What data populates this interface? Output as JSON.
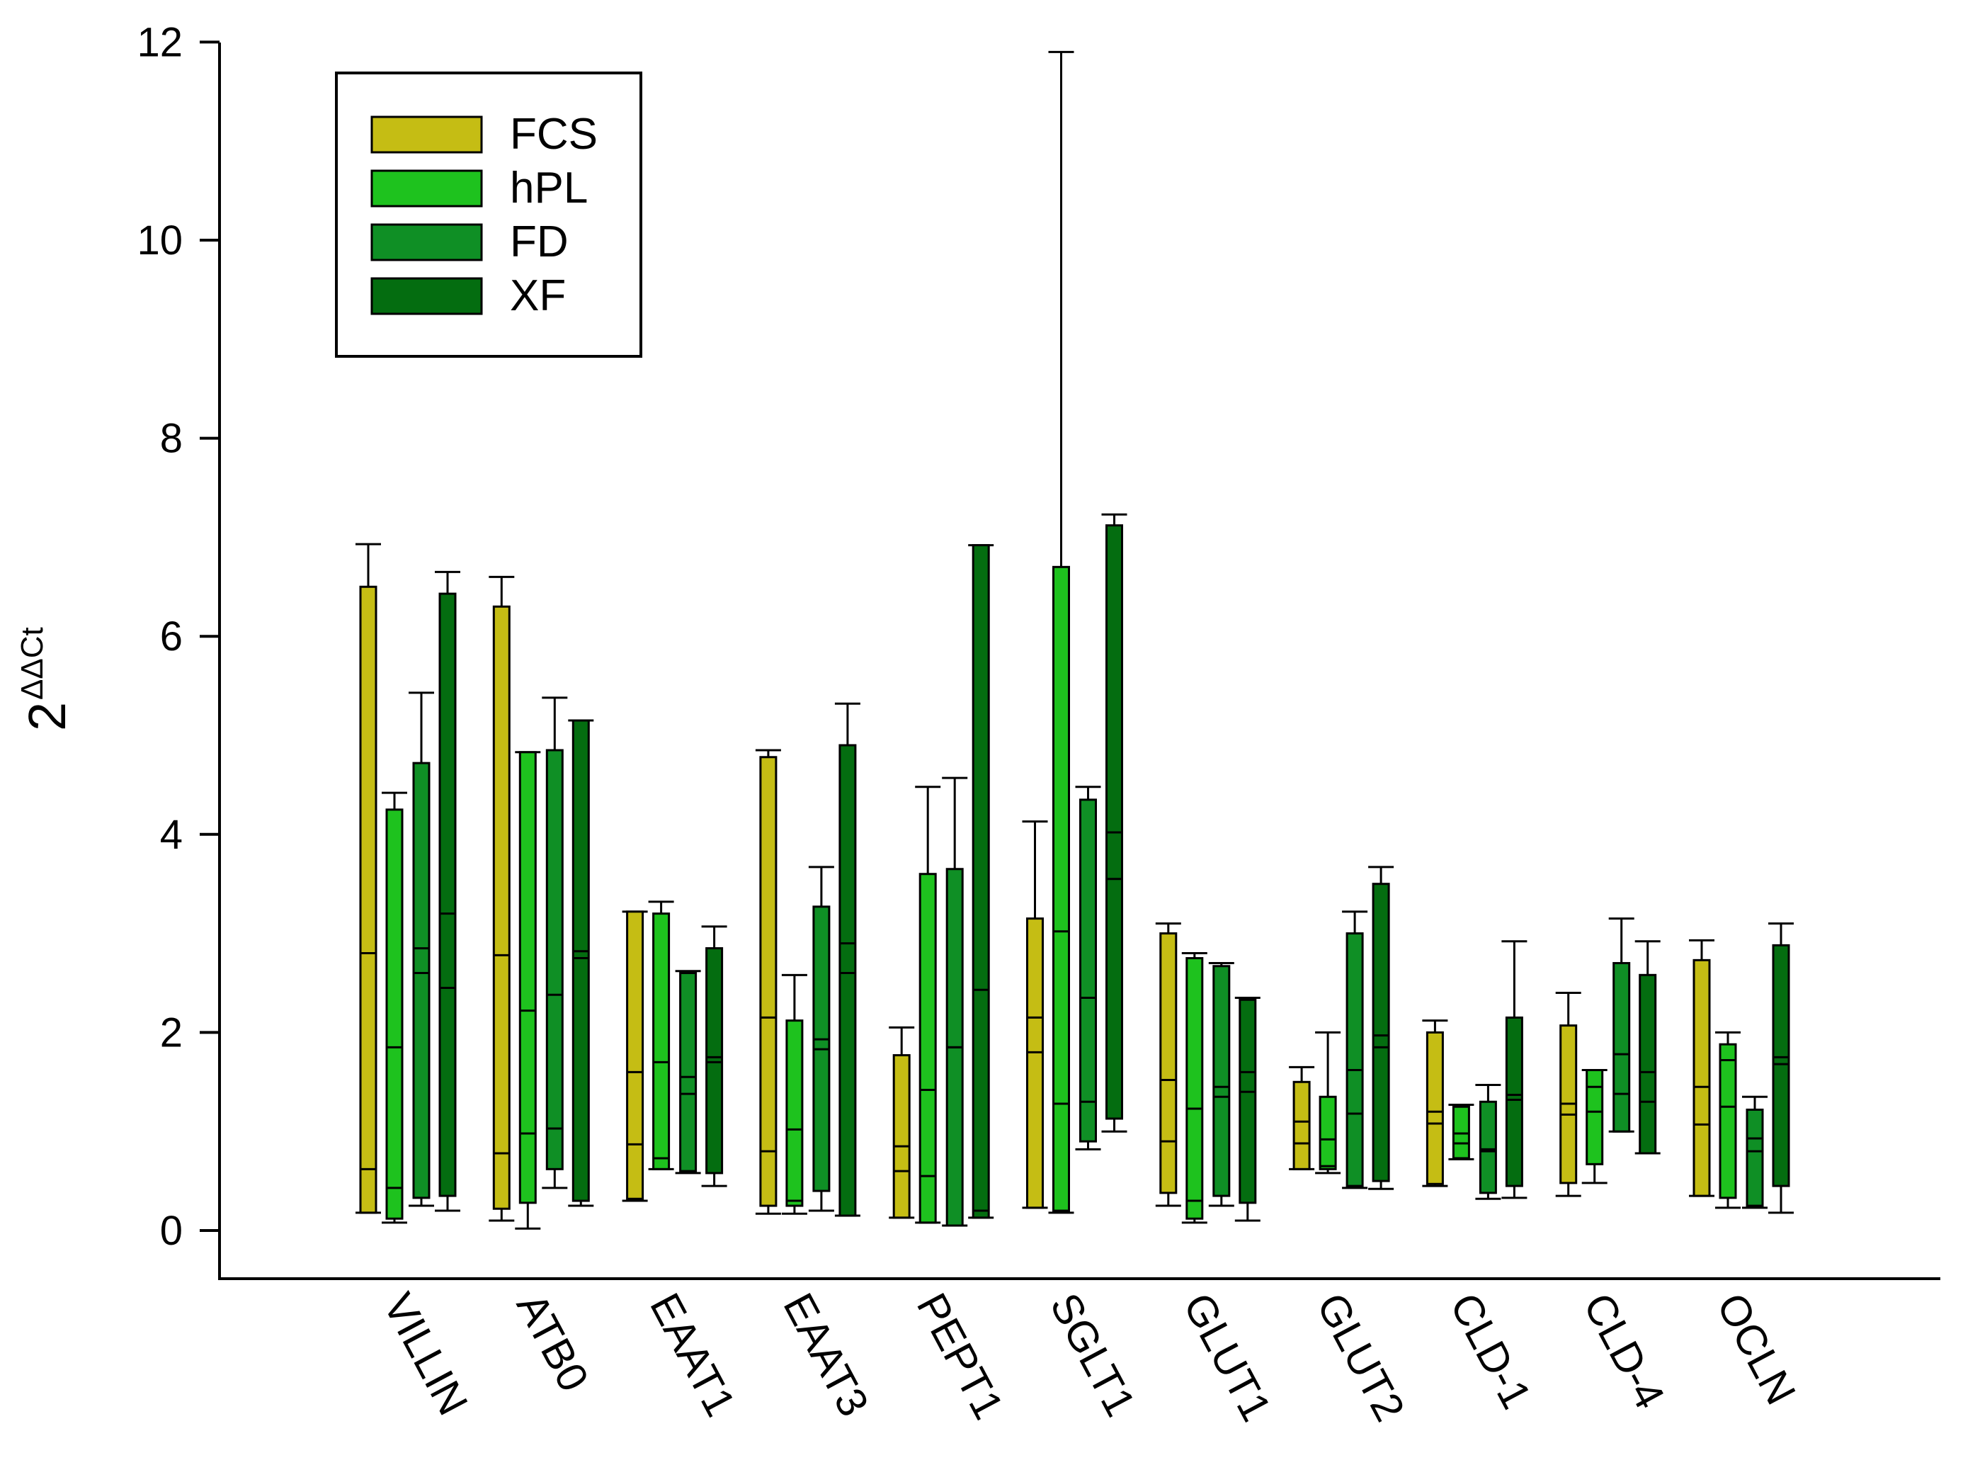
{
  "chart_data": {
    "type": "boxplot",
    "ylabel": {
      "base": "2",
      "superscript": "ΔΔCt"
    },
    "xlabel": "",
    "ylim": [
      -0.9,
      12
    ],
    "yticks": [
      0,
      2,
      4,
      6,
      8,
      10,
      12
    ],
    "ytick_labels": [
      "0",
      "2",
      "4",
      "6",
      "8",
      "10",
      "12"
    ],
    "grid": false,
    "legend_position": "top-left",
    "categories": [
      "VILLIN",
      "ATB0",
      "EAAT1",
      "EAAT3",
      "PEPT1",
      "SGLT1",
      "GLUT1",
      "GLUT2",
      "CLD-1",
      "CLD-4",
      "OCLN"
    ],
    "series": [
      {
        "name": "FCS",
        "color": "#c5bd14",
        "boxes": [
          {
            "min": 0.18,
            "q1": 0.18,
            "p25line": 0.62,
            "median": 2.8,
            "q3": 6.5,
            "max": 6.93
          },
          {
            "min": 0.1,
            "q1": 0.22,
            "p25line": 0.78,
            "median": 2.78,
            "q3": 6.3,
            "max": 6.6
          },
          {
            "min": 0.3,
            "q1": 0.32,
            "p25line": 0.87,
            "median": 1.6,
            "q3": 3.22,
            "max": 3.22
          },
          {
            "min": 0.17,
            "q1": 0.25,
            "p25line": 0.8,
            "median": 2.15,
            "q3": 4.78,
            "max": 4.85
          },
          {
            "min": 0.13,
            "q1": 0.13,
            "p25line": 0.6,
            "median": 0.85,
            "q3": 1.77,
            "max": 2.05
          },
          {
            "min": 0.23,
            "q1": 0.23,
            "p25line": 1.8,
            "median": 2.15,
            "q3": 3.15,
            "max": 4.13
          },
          {
            "min": 0.25,
            "q1": 0.38,
            "p25line": 0.9,
            "median": 1.52,
            "q3": 3.0,
            "max": 3.1
          },
          {
            "min": 0.62,
            "q1": 0.62,
            "p25line": 0.88,
            "median": 1.1,
            "q3": 1.5,
            "max": 1.65
          },
          {
            "min": 0.45,
            "q1": 0.47,
            "p25line": 1.08,
            "median": 1.2,
            "q3": 2.0,
            "max": 2.12
          },
          {
            "min": 0.35,
            "q1": 0.48,
            "p25line": 1.17,
            "median": 1.28,
            "q3": 2.07,
            "max": 2.4
          },
          {
            "min": 0.35,
            "q1": 0.35,
            "p25line": 1.07,
            "median": 1.45,
            "q3": 2.73,
            "max": 2.93
          }
        ]
      },
      {
        "name": "hPL",
        "color": "#1ec21e",
        "boxes": [
          {
            "min": 0.08,
            "q1": 0.12,
            "p25line": 0.43,
            "median": 1.85,
            "q3": 4.25,
            "max": 4.42
          },
          {
            "min": 0.02,
            "q1": 0.28,
            "p25line": 0.98,
            "median": 2.22,
            "q3": 4.83,
            "max": 4.83
          },
          {
            "min": 0.62,
            "q1": 0.62,
            "p25line": 0.73,
            "median": 1.7,
            "q3": 3.2,
            "max": 3.32
          },
          {
            "min": 0.17,
            "q1": 0.25,
            "p25line": 0.3,
            "median": 1.02,
            "q3": 2.12,
            "max": 2.58
          },
          {
            "min": 0.08,
            "q1": 0.08,
            "p25line": 0.55,
            "median": 1.42,
            "q3": 3.6,
            "max": 4.48
          },
          {
            "min": 0.18,
            "q1": 0.2,
            "p25line": 1.28,
            "median": 3.02,
            "q3": 6.7,
            "max": 11.9
          },
          {
            "min": 0.08,
            "q1": 0.12,
            "p25line": 0.3,
            "median": 1.23,
            "q3": 2.75,
            "max": 2.8
          },
          {
            "min": 0.58,
            "q1": 0.62,
            "p25line": 0.65,
            "median": 0.92,
            "q3": 1.35,
            "max": 2.0
          },
          {
            "min": 0.72,
            "q1": 0.73,
            "p25line": 0.88,
            "median": 0.98,
            "q3": 1.25,
            "max": 1.27
          },
          {
            "min": 0.48,
            "q1": 0.67,
            "p25line": 1.2,
            "median": 1.45,
            "q3": 1.62,
            "max": 1.62
          },
          {
            "min": 0.23,
            "q1": 0.33,
            "p25line": 1.25,
            "median": 1.72,
            "q3": 1.88,
            "max": 2.0
          }
        ]
      },
      {
        "name": "FD",
        "color": "#0f8f25",
        "boxes": [
          {
            "min": 0.25,
            "q1": 0.33,
            "p25line": 2.6,
            "median": 2.85,
            "q3": 4.72,
            "max": 5.43
          },
          {
            "min": 0.43,
            "q1": 0.62,
            "p25line": 1.03,
            "median": 2.38,
            "q3": 4.85,
            "max": 5.38
          },
          {
            "min": 0.58,
            "q1": 0.6,
            "p25line": 1.38,
            "median": 1.55,
            "q3": 2.6,
            "max": 2.62
          },
          {
            "min": 0.2,
            "q1": 0.4,
            "p25line": 1.83,
            "median": 1.93,
            "q3": 3.27,
            "max": 3.67
          },
          {
            "min": 0.05,
            "q1": 0.05,
            "p25line": 1.85,
            "median": 1.85,
            "q3": 3.65,
            "max": 4.57
          },
          {
            "min": 0.82,
            "q1": 0.9,
            "p25line": 1.3,
            "median": 2.35,
            "q3": 4.35,
            "max": 4.48
          },
          {
            "min": 0.25,
            "q1": 0.35,
            "p25line": 1.35,
            "median": 1.45,
            "q3": 2.67,
            "max": 2.7
          },
          {
            "min": 0.43,
            "q1": 0.45,
            "p25line": 1.18,
            "median": 1.62,
            "q3": 3.0,
            "max": 3.22
          },
          {
            "min": 0.32,
            "q1": 0.38,
            "p25line": 0.8,
            "median": 0.82,
            "q3": 1.3,
            "max": 1.47
          },
          {
            "min": 1.0,
            "q1": 1.0,
            "p25line": 1.38,
            "median": 1.78,
            "q3": 2.7,
            "max": 3.15
          },
          {
            "min": 0.23,
            "q1": 0.25,
            "p25line": 0.8,
            "median": 0.93,
            "q3": 1.22,
            "max": 1.35
          }
        ]
      },
      {
        "name": "XF",
        "color": "#046d10",
        "boxes": [
          {
            "min": 0.2,
            "q1": 0.35,
            "p25line": 2.45,
            "median": 3.2,
            "q3": 6.43,
            "max": 6.65
          },
          {
            "min": 0.25,
            "q1": 0.3,
            "p25line": 2.75,
            "median": 2.82,
            "q3": 5.15,
            "max": 5.15
          },
          {
            "min": 0.45,
            "q1": 0.58,
            "p25line": 1.7,
            "median": 1.75,
            "q3": 2.85,
            "max": 3.07
          },
          {
            "min": 0.15,
            "q1": 0.15,
            "p25line": 2.6,
            "median": 2.9,
            "q3": 4.9,
            "max": 5.32
          },
          {
            "min": 0.13,
            "q1": 0.13,
            "p25line": 0.2,
            "median": 2.43,
            "q3": 6.92,
            "max": 6.92
          },
          {
            "min": 1.0,
            "q1": 1.13,
            "p25line": 3.55,
            "median": 4.02,
            "q3": 7.12,
            "max": 7.23
          },
          {
            "min": 0.1,
            "q1": 0.28,
            "p25line": 1.4,
            "median": 1.6,
            "q3": 2.33,
            "max": 2.35
          },
          {
            "min": 0.42,
            "q1": 0.5,
            "p25line": 1.85,
            "median": 1.97,
            "q3": 3.5,
            "max": 3.67
          },
          {
            "min": 0.33,
            "q1": 0.45,
            "p25line": 1.32,
            "median": 1.37,
            "q3": 2.15,
            "max": 2.92
          },
          {
            "min": 0.78,
            "q1": 0.78,
            "p25line": 1.3,
            "median": 1.6,
            "q3": 2.58,
            "max": 2.92
          },
          {
            "min": 0.18,
            "q1": 0.45,
            "p25line": 1.68,
            "median": 1.75,
            "q3": 2.88,
            "max": 3.1
          }
        ]
      }
    ]
  }
}
